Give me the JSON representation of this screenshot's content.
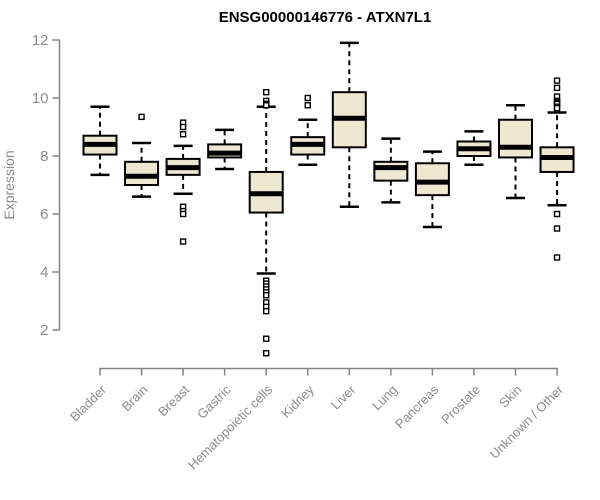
{
  "chart_data": {
    "type": "boxplot",
    "title": "ENSG00000146776 - ATXN7L1",
    "ylabel": "Expression",
    "xlabel": "",
    "ylim": [
      2,
      12
    ],
    "y_ticks": [
      2,
      4,
      6,
      8,
      10,
      12
    ],
    "grid": false,
    "legend": "none",
    "categories": [
      "Bladder",
      "Brain",
      "Breast",
      "Gastric",
      "Hematopoietic cells",
      "Kidney",
      "Liver",
      "Lung",
      "Pancreas",
      "Prostate",
      "Skin",
      "Unknown / Other"
    ],
    "boxes": [
      {
        "category": "Bladder",
        "whisker_low": 7.35,
        "q1": 8.05,
        "median": 8.4,
        "q3": 8.7,
        "whisker_high": 9.7,
        "outliers": []
      },
      {
        "category": "Brain",
        "whisker_low": 6.6,
        "q1": 7.0,
        "median": 7.3,
        "q3": 7.8,
        "whisker_high": 8.45,
        "outliers": [
          9.35
        ]
      },
      {
        "category": "Breast",
        "whisker_low": 6.7,
        "q1": 7.35,
        "median": 7.6,
        "q3": 7.9,
        "whisker_high": 8.35,
        "outliers": [
          9.15,
          9.0,
          8.75,
          6.25,
          6.1,
          6.0,
          5.05
        ]
      },
      {
        "category": "Gastric",
        "whisker_low": 7.55,
        "q1": 7.95,
        "median": 8.1,
        "q3": 8.4,
        "whisker_high": 8.9,
        "outliers": []
      },
      {
        "category": "Hematopoietic cells",
        "whisker_low": 3.95,
        "q1": 6.05,
        "median": 6.7,
        "q3": 7.45,
        "whisker_high": 9.7,
        "outliers": [
          10.2,
          9.9,
          9.8,
          9.75,
          3.7,
          3.6,
          3.5,
          3.4,
          3.3,
          3.2,
          2.95,
          2.8,
          2.65,
          1.7,
          1.2
        ]
      },
      {
        "category": "Kidney",
        "whisker_low": 7.7,
        "q1": 8.05,
        "median": 8.4,
        "q3": 8.65,
        "whisker_high": 9.25,
        "outliers": [
          10.0,
          9.75
        ]
      },
      {
        "category": "Liver",
        "whisker_low": 6.25,
        "q1": 8.3,
        "median": 9.3,
        "q3": 10.2,
        "whisker_high": 11.9,
        "outliers": []
      },
      {
        "category": "Lung",
        "whisker_low": 6.4,
        "q1": 7.15,
        "median": 7.6,
        "q3": 7.8,
        "whisker_high": 8.6,
        "outliers": []
      },
      {
        "category": "Pancreas",
        "whisker_low": 5.55,
        "q1": 6.65,
        "median": 7.1,
        "q3": 7.75,
        "whisker_high": 8.15,
        "outliers": []
      },
      {
        "category": "Prostate",
        "whisker_low": 7.7,
        "q1": 8.0,
        "median": 8.25,
        "q3": 8.5,
        "whisker_high": 8.85,
        "outliers": []
      },
      {
        "category": "Skin",
        "whisker_low": 6.55,
        "q1": 7.95,
        "median": 8.3,
        "q3": 9.25,
        "whisker_high": 9.75,
        "outliers": []
      },
      {
        "category": "Unknown / Other",
        "whisker_low": 6.3,
        "q1": 7.45,
        "median": 7.95,
        "q3": 8.3,
        "whisker_high": 9.5,
        "outliers": [
          10.6,
          10.35,
          10.05,
          9.9,
          9.85,
          9.8,
          9.7,
          9.65,
          6.0,
          5.5,
          4.5
        ]
      }
    ]
  },
  "colors": {
    "background": "#FFFFFF",
    "box_fill": "#EDE8D0",
    "box_stroke": "#000000",
    "median": "#000000",
    "whisker": "#000000",
    "outlier_stroke": "#000000",
    "axis": "#848484",
    "tick_text": "#8C8C8C",
    "title_text": "#000000"
  }
}
